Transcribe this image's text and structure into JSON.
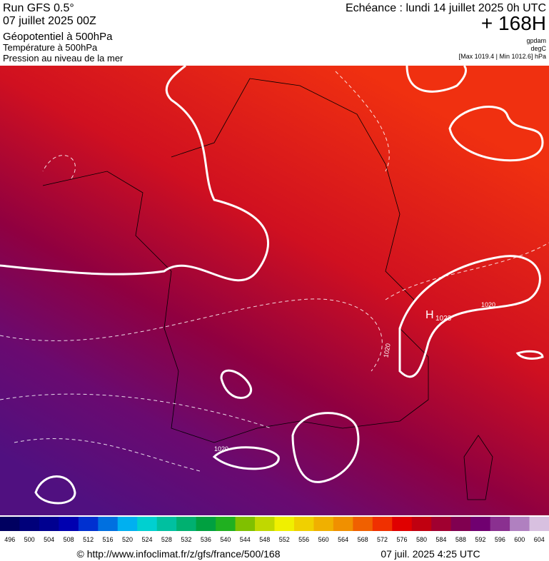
{
  "header": {
    "run": "Run GFS 0.5°",
    "date": "07 juillet 2025 00Z",
    "field1": "Géopotentiel à 500hPa",
    "field2": "Température à 500hPa",
    "field3": "Pression au niveau de la mer",
    "echeance": "Echéance : lundi 14 juillet 2025 0h UTC",
    "lead": "+ 168H",
    "unit1": "gpdam",
    "unit2": "degC",
    "range": "[Max 1019.4 | Min 1012.6] hPa"
  },
  "map": {
    "high_letter": "H",
    "high_value": "1023",
    "isobar_labels": [
      "1020",
      "1020",
      "1020"
    ]
  },
  "colorbar": {
    "labels": [
      "496",
      "500",
      "504",
      "508",
      "512",
      "516",
      "520",
      "524",
      "528",
      "532",
      "536",
      "540",
      "544",
      "548",
      "552",
      "556",
      "560",
      "564",
      "568",
      "572",
      "576",
      "580",
      "584",
      "588",
      "592",
      "596",
      "600",
      "604"
    ],
    "colors": [
      "#000060",
      "#00007a",
      "#000090",
      "#0000b0",
      "#0030d0",
      "#0070e0",
      "#00b0f0",
      "#00d0d0",
      "#00c0a0",
      "#00b070",
      "#00a040",
      "#20b020",
      "#80c000",
      "#c0d800",
      "#f0f000",
      "#f0d000",
      "#f0b000",
      "#f09000",
      "#f06000",
      "#f03000",
      "#e00000",
      "#c00010",
      "#a00030",
      "#800050",
      "#700070",
      "#8a3090",
      "#b080c0",
      "#d8c0e0"
    ]
  },
  "footer": {
    "source": "© http://www.infoclimat.fr/z/gfs/france/500/168",
    "stamp": "07 juil. 2025  4:25 UTC"
  }
}
